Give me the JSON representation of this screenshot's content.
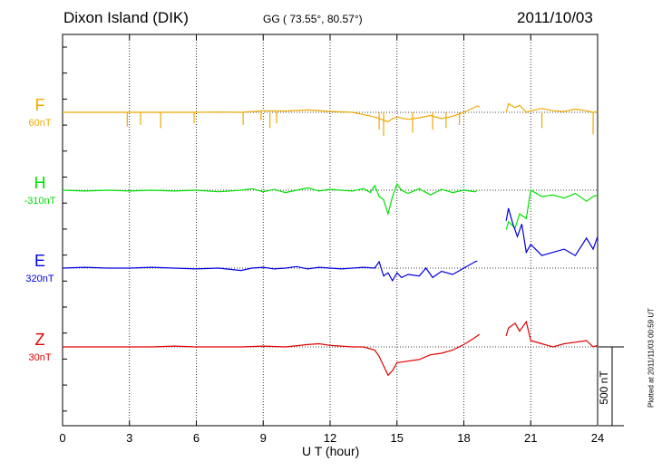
{
  "header": {
    "station": "Dixon Island (DIK)",
    "coords": "GG ( 73.55°,  80.57°)",
    "date": "2011/10/03"
  },
  "footer": {
    "plotted": "Plotted at 2011/11/03 00:59 UT"
  },
  "chart_data": {
    "type": "line",
    "xlabel": "U T (hour)",
    "xlim": [
      0,
      24
    ],
    "xticks": [
      "0",
      "3",
      "6",
      "9",
      "12",
      "15",
      "18",
      "21",
      "24"
    ],
    "grid": true,
    "scale_bar": "500 nT",
    "series": [
      {
        "name": "F",
        "baseline": "60nT",
        "color": "#f0a800",
        "x": [
          0,
          1,
          2,
          3,
          4,
          5,
          6,
          7,
          8,
          9,
          10,
          11,
          12,
          13,
          13.5,
          14,
          14.3,
          14.6,
          14.8,
          15,
          15.5,
          16,
          16.5,
          17,
          17.5,
          18,
          18.3,
          18.6,
          18.7,
          19.9,
          20,
          20.3,
          20.5,
          20.8,
          21,
          21.5,
          22,
          22.5,
          23,
          23.5,
          23.8,
          24
        ],
        "y": [
          0,
          0,
          0,
          0,
          0,
          0,
          0,
          2,
          0,
          10,
          8,
          15,
          6,
          0,
          -15,
          -30,
          -45,
          -60,
          -40,
          -30,
          -45,
          -35,
          -20,
          -40,
          -25,
          0,
          20,
          40,
          35,
          0,
          55,
          30,
          45,
          0,
          10,
          25,
          10,
          5,
          20,
          10,
          0,
          5
        ],
        "spikes": [
          [
            2.9,
            -90
          ],
          [
            3.5,
            -80
          ],
          [
            4.4,
            -100
          ],
          [
            5.9,
            -70
          ],
          [
            8.1,
            -80
          ],
          [
            8.9,
            -50
          ],
          [
            9.3,
            -100
          ],
          [
            9.6,
            -70
          ],
          [
            14.2,
            -110
          ],
          [
            14.4,
            -150
          ],
          [
            15.7,
            -130
          ],
          [
            16.6,
            -110
          ],
          [
            17.2,
            -100
          ],
          [
            17.8,
            -80
          ],
          [
            21.5,
            -100
          ],
          [
            23.8,
            -140
          ]
        ]
      },
      {
        "name": "H",
        "baseline": "-310nT",
        "color": "#00e000",
        "x": [
          0,
          1,
          2,
          3,
          4,
          5,
          6,
          7,
          8,
          8.5,
          9,
          9.5,
          10,
          10.5,
          11,
          11.5,
          12,
          12.5,
          13,
          13.5,
          13.8,
          14,
          14.2,
          14.4,
          14.6,
          14.8,
          15,
          15.2,
          15.5,
          16,
          16.5,
          17,
          17.5,
          18,
          18.5,
          18.6,
          19.9,
          20,
          20.3,
          20.5,
          20.8,
          21,
          21.5,
          22,
          22.5,
          23,
          23.5,
          23.8,
          24
        ],
        "y": [
          0,
          -5,
          0,
          -5,
          0,
          -5,
          0,
          -10,
          0,
          10,
          -10,
          5,
          -15,
          0,
          15,
          -5,
          5,
          0,
          -5,
          10,
          -15,
          30,
          -40,
          -60,
          -150,
          -40,
          40,
          0,
          -20,
          10,
          -30,
          5,
          -15,
          0,
          -10,
          0,
          -250,
          -200,
          -240,
          -150,
          -180,
          0,
          -40,
          -30,
          -50,
          -20,
          -70,
          -40,
          -30
        ],
        "spikes": []
      },
      {
        "name": "E",
        "baseline": "320nT",
        "color": "#0000e0",
        "x": [
          0,
          1,
          2,
          3,
          4,
          5,
          6,
          7,
          8,
          8.5,
          9,
          9.5,
          10,
          10.5,
          11,
          11.5,
          12,
          12.5,
          13,
          13.5,
          14,
          14.2,
          14.4,
          14.6,
          14.8,
          15,
          15.2,
          15.5,
          16,
          16.3,
          16.6,
          17,
          17.5,
          18,
          18.5,
          18.6,
          19.9,
          20,
          20.2,
          20.4,
          20.6,
          20.8,
          21,
          21.5,
          22,
          22.5,
          23,
          23.5,
          23.8,
          24
        ],
        "y": [
          0,
          5,
          0,
          0,
          5,
          0,
          -5,
          0,
          -15,
          0,
          5,
          -5,
          0,
          10,
          -5,
          5,
          0,
          -5,
          0,
          5,
          0,
          40,
          -50,
          -30,
          -80,
          -30,
          -60,
          -40,
          -50,
          0,
          -60,
          -20,
          -40,
          0,
          40,
          45,
          300,
          380,
          280,
          200,
          280,
          100,
          150,
          80,
          100,
          120,
          80,
          190,
          120,
          200
        ],
        "spikes": []
      },
      {
        "name": "Z",
        "baseline": "30nT",
        "color": "#e00000",
        "x": [
          0,
          1,
          2,
          3,
          4,
          5,
          6,
          7,
          8,
          9,
          10,
          11,
          11.5,
          12,
          12.5,
          13,
          13.5,
          14,
          14.2,
          14.4,
          14.6,
          14.8,
          15,
          15.5,
          16,
          16.5,
          17,
          17.5,
          18,
          18.5,
          18.7,
          19.9,
          20,
          20.3,
          20.5,
          20.8,
          21,
          21.5,
          22,
          22.5,
          23,
          23.5,
          23.8,
          24
        ],
        "y": [
          0,
          0,
          0,
          0,
          0,
          5,
          0,
          0,
          0,
          5,
          0,
          15,
          20,
          10,
          5,
          0,
          0,
          -20,
          -60,
          -120,
          -180,
          -150,
          -100,
          -90,
          -80,
          -50,
          -40,
          -20,
          15,
          60,
          80,
          70,
          120,
          150,
          100,
          160,
          40,
          20,
          0,
          20,
          30,
          40,
          0,
          10
        ],
        "spikes": []
      }
    ]
  }
}
